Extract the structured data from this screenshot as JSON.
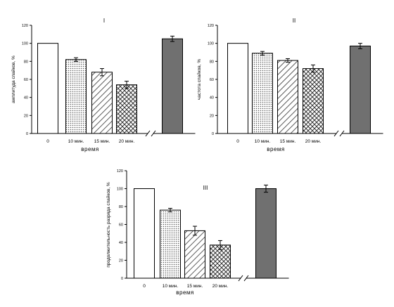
{
  "chart_data": [
    {
      "type": "bar",
      "title": "I",
      "ylabel": "амплитуда спайков, %",
      "xlabel": "время",
      "ylim": [
        0,
        120
      ],
      "yticks": [
        0,
        20,
        40,
        60,
        80,
        100,
        120
      ],
      "categories": [
        "0",
        "10 мин.",
        "15 мин.",
        "20 мин.",
        ""
      ],
      "values": [
        100,
        82,
        68,
        54,
        105
      ],
      "errors": [
        0,
        2,
        4,
        4,
        3
      ],
      "patterns": [
        "white",
        "dots",
        "diagonal",
        "crosshatch",
        "dark"
      ],
      "axis_break_before_last": true
    },
    {
      "type": "bar",
      "title": "II",
      "ylabel": "частота спайков, %",
      "xlabel": "время",
      "ylim": [
        0,
        120
      ],
      "yticks": [
        0,
        20,
        40,
        60,
        80,
        100,
        120
      ],
      "categories": [
        "0",
        "10 мин.",
        "15 мин.",
        "20 мин.",
        ""
      ],
      "values": [
        100,
        89,
        81,
        72,
        97
      ],
      "errors": [
        0,
        2,
        2,
        4,
        3
      ],
      "patterns": [
        "white",
        "dots",
        "diagonal",
        "crosshatch",
        "dark"
      ],
      "axis_break_before_last": true
    },
    {
      "type": "bar",
      "title": "III",
      "ylabel": "продолжительность разряда спайков, %",
      "xlabel": "время",
      "ylim": [
        0,
        120
      ],
      "yticks": [
        0,
        20,
        40,
        60,
        80,
        100,
        120
      ],
      "categories": [
        "0",
        "10 мин.",
        "15 мин.",
        "20 мин.",
        ""
      ],
      "values": [
        100,
        76,
        53,
        37,
        100
      ],
      "errors": [
        0,
        2,
        5,
        5,
        4
      ],
      "patterns": [
        "white",
        "dots",
        "diagonal",
        "crosshatch",
        "dark"
      ],
      "axis_break_before_last": true
    }
  ],
  "colors": {
    "axis": "#000000",
    "bar_stroke": "#000000",
    "dark_bar": "#707070",
    "pattern_line": "#333333"
  }
}
